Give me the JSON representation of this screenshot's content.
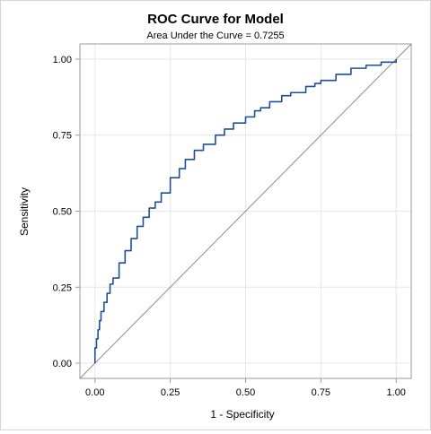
{
  "chart_data": {
    "type": "line",
    "title": "ROC Curve for Model",
    "subtitle": "Area Under the Curve = 0.7255",
    "xlabel": "1 - Specificity",
    "ylabel": "Sensitivity",
    "xlim": [
      -0.05,
      1.05
    ],
    "ylim": [
      -0.05,
      1.05
    ],
    "x_ticks": [
      0,
      0.25,
      0.5,
      0.75,
      1
    ],
    "x_tick_labels": [
      "0.00",
      "0.25",
      "0.50",
      "0.75",
      "1.00"
    ],
    "y_ticks": [
      0,
      0.25,
      0.5,
      0.75,
      1
    ],
    "y_tick_labels": [
      "0.00",
      "0.25",
      "0.50",
      "0.75",
      "1.00"
    ],
    "grid": true,
    "colors": {
      "curve": "#1f4e9a",
      "reference": "#8c8c8c",
      "grid": "#e6e6e6",
      "frame": "#9a9a9a"
    },
    "series": [
      {
        "x": [
          0,
          0,
          0.005,
          0.01,
          0.015,
          0.02,
          0.03,
          0.04,
          0.05,
          0.06,
          0.08,
          0.1,
          0.12,
          0.14,
          0.16,
          0.18,
          0.2,
          0.22,
          0.25,
          0.28,
          0.3,
          0.33,
          0.36,
          0.4,
          0.43,
          0.46,
          0.5,
          0.53,
          0.55,
          0.58,
          0.62,
          0.65,
          0.7,
          0.73,
          0.75,
          0.8,
          0.85,
          0.9,
          0.95,
          1
        ],
        "y": [
          0,
          0.05,
          0.08,
          0.11,
          0.14,
          0.17,
          0.2,
          0.23,
          0.26,
          0.28,
          0.33,
          0.37,
          0.41,
          0.45,
          0.48,
          0.51,
          0.53,
          0.56,
          0.61,
          0.64,
          0.67,
          0.7,
          0.72,
          0.75,
          0.77,
          0.79,
          0.81,
          0.83,
          0.84,
          0.86,
          0.88,
          0.89,
          0.91,
          0.92,
          0.93,
          0.95,
          0.97,
          0.98,
          0.99,
          1
        ]
      },
      {
        "x": [
          0,
          1
        ],
        "y": [
          0,
          1
        ]
      }
    ]
  }
}
